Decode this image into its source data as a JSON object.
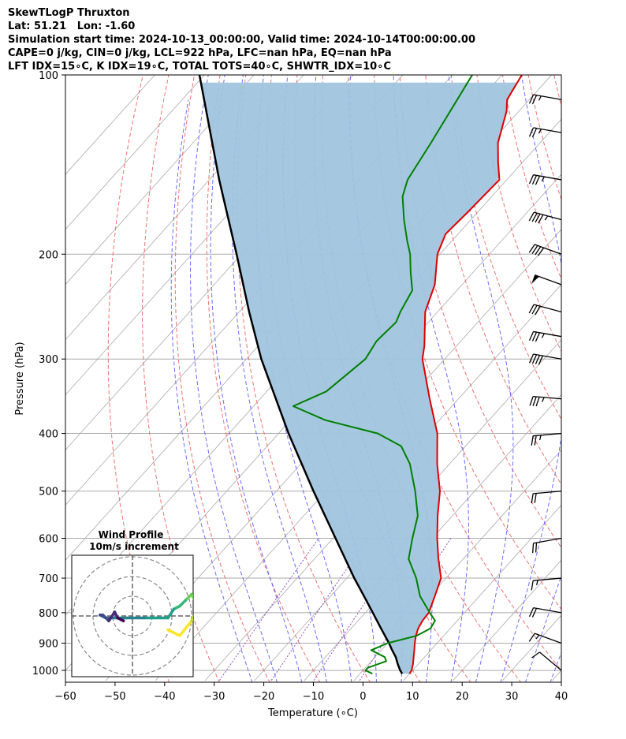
{
  "header": {
    "line1": "SkewTLogP Thruxton",
    "line2": "Lat: 51.21   Lon: -1.60",
    "line3": "Simulation start time: 2024-10-13_00:00:00, Valid time: 2024-10-14T00:00:00.00",
    "line4": "CAPE=0 j/kg, CIN=0 j/kg, LCL=922 hPa, LFC=nan hPa, EQ=nan hPa",
    "line5": "LFT IDX=15∘C, K IDX=19∘C, TOTAL TOTS=40∘C, SHWTR_IDX=10∘C"
  },
  "colors": {
    "temperature": "#e00000",
    "dewpoint": "#008000",
    "parcel": "#000000",
    "shade": "#a0c4de",
    "isotherm": "#aaaaaa",
    "dry_adiabat": "#f06060",
    "moist_adiabat": "#5a5aff",
    "mixing_ratio": "#9050c0"
  },
  "chart_data": {
    "type": "line",
    "title": "SkewTLogP Thruxton",
    "xlabel": "Temperature (∘C)",
    "ylabel": "Pressure (hPa)",
    "xlim": [
      -60,
      40
    ],
    "ylim": [
      1040,
      100
    ],
    "xticks": [
      -60,
      -50,
      -40,
      -30,
      -20,
      -10,
      0,
      10,
      20,
      30,
      40
    ],
    "yticks": [
      1000,
      900,
      800,
      700,
      600,
      500,
      400,
      300,
      200,
      100
    ],
    "series": [
      {
        "name": "Temperature",
        "p": [
          1013,
          1000,
          975,
          950,
          925,
          900,
          875,
          850,
          825,
          800,
          750,
          700,
          650,
          600,
          550,
          500,
          450,
          400,
          350,
          300,
          285,
          250,
          225,
          200,
          185,
          170,
          150,
          140,
          130,
          115,
          110,
          100
        ],
        "t": [
          10.0,
          9.8,
          8.9,
          7.8,
          6.7,
          5.5,
          4.4,
          3.5,
          3.0,
          2.8,
          1.0,
          -1.0,
          -5.0,
          -9.0,
          -13.0,
          -17.0,
          -22.5,
          -28.0,
          -35.8,
          -44.5,
          -46.5,
          -52.5,
          -55.5,
          -60.5,
          -62.5,
          -62.0,
          -61.5,
          -65.0,
          -68.5,
          -72.5,
          -74.5,
          -76.0
        ]
      },
      {
        "name": "Dewpoint",
        "p": [
          1013,
          1000,
          990,
          965,
          950,
          925,
          900,
          875,
          850,
          825,
          800,
          750,
          700,
          650,
          600,
          550,
          500,
          450,
          420,
          400,
          380,
          360,
          340,
          300,
          280,
          260,
          250,
          230,
          215,
          200,
          190,
          175,
          160,
          150,
          130,
          100
        ],
        "t": [
          2.5,
          0.5,
          0.5,
          3.0,
          2.0,
          -2.0,
          0.0,
          4.5,
          6.0,
          5.5,
          3.0,
          -2.0,
          -6.0,
          -11.0,
          -14.0,
          -17.0,
          -22.0,
          -28.0,
          -33.0,
          -40.0,
          -53.0,
          -62.0,
          -58.0,
          -56.0,
          -57.0,
          -56.5,
          -57.5,
          -59.0,
          -62.5,
          -66.0,
          -69.0,
          -73.5,
          -78.0,
          -80.0,
          -82.0,
          -86.0
        ]
      },
      {
        "name": "Parcel",
        "p": [
          1013,
          1000,
          975,
          950,
          922,
          900,
          850,
          800,
          750,
          700,
          600,
          500,
          400,
          300,
          250,
          200,
          150,
          100
        ],
        "t": [
          8.5,
          7.5,
          5.8,
          4.2,
          2.0,
          0.3,
          -4.0,
          -8.5,
          -13.3,
          -18.5,
          -29.5,
          -42.5,
          -58.0,
          -77.0,
          -88.0,
          -101.0,
          -118.0,
          -141.0
        ]
      }
    ],
    "wind_barbs": [
      {
        "p": 1000,
        "speed_kt": 10,
        "dir_deg": 230
      },
      {
        "p": 900,
        "speed_kt": 15,
        "dir_deg": 250
      },
      {
        "p": 800,
        "speed_kt": 20,
        "dir_deg": 260
      },
      {
        "p": 700,
        "speed_kt": 15,
        "dir_deg": 275
      },
      {
        "p": 600,
        "speed_kt": 20,
        "dir_deg": 280
      },
      {
        "p": 500,
        "speed_kt": 20,
        "dir_deg": 275
      },
      {
        "p": 400,
        "speed_kt": 25,
        "dir_deg": 275
      },
      {
        "p": 350,
        "speed_kt": 35,
        "dir_deg": 265
      },
      {
        "p": 300,
        "speed_kt": 40,
        "dir_deg": 260
      },
      {
        "p": 275,
        "speed_kt": 35,
        "dir_deg": 260
      },
      {
        "p": 250,
        "speed_kt": 30,
        "dir_deg": 255
      },
      {
        "p": 225,
        "speed_kt": 50,
        "dir_deg": 250
      },
      {
        "p": 200,
        "speed_kt": 40,
        "dir_deg": 250
      },
      {
        "p": 175,
        "speed_kt": 45,
        "dir_deg": 255
      },
      {
        "p": 150,
        "speed_kt": 35,
        "dir_deg": 260
      },
      {
        "p": 125,
        "speed_kt": 25,
        "dir_deg": 260
      },
      {
        "p": 110,
        "speed_kt": 25,
        "dir_deg": 260
      }
    ],
    "hodograph": {
      "title": "Wind Profile",
      "subtitle": "10m/s increment",
      "ring_increment_ms": 10,
      "u": [
        6.0,
        8.0,
        10.0,
        11.0,
        10.5,
        10.0,
        9.0,
        8.0,
        7.0,
        6.0,
        2.0,
        -1.0,
        -3.5,
        -4.5,
        -5.5,
        -5.0,
        -4.0,
        -3.0,
        -2.5,
        -1.5
      ],
      "v": [
        -1.0,
        -2.0,
        0.5,
        2.5,
        4.0,
        5.0,
        4.0,
        3.0,
        2.5,
        1.0,
        1.0,
        1.0,
        1.0,
        1.0,
        1.5,
        1.5,
        0.5,
        2.0,
        1.0,
        0.5
      ]
    }
  }
}
